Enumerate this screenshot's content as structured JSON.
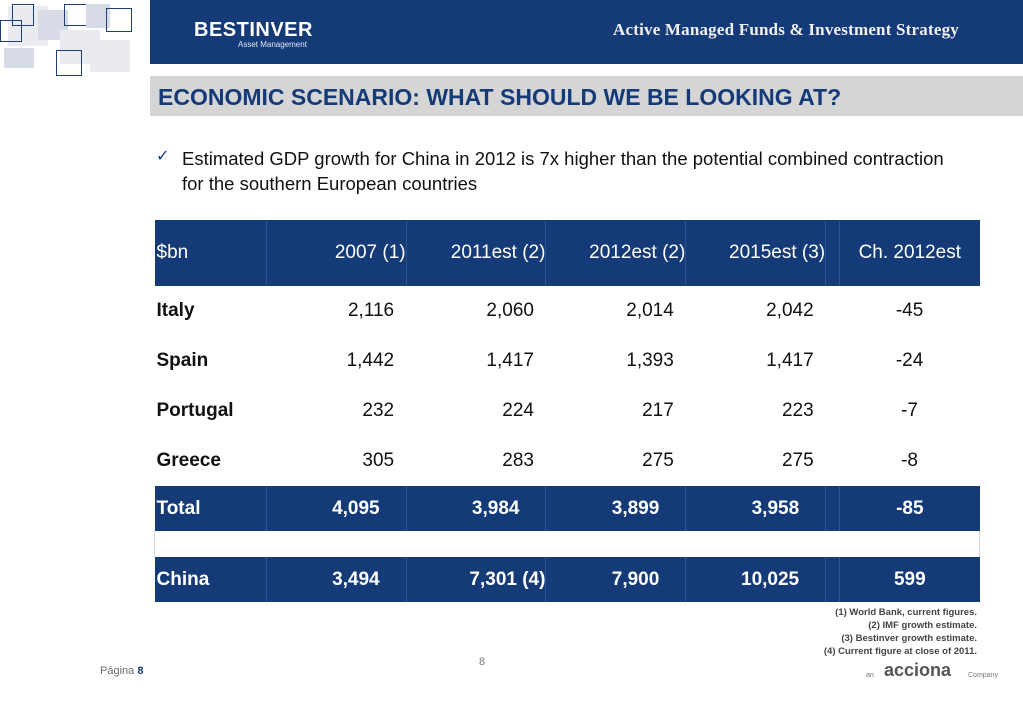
{
  "header": {
    "logo_main": "BESTINVER",
    "logo_sub": "Asset Management",
    "title": "Active Managed Funds & Investment Strategy"
  },
  "slide": {
    "heading": "ECONOMIC SCENARIO: WHAT SHOULD WE BE LOOKING AT?",
    "bullet": "Estimated GDP growth for China in 2012 is 7x higher than the potential combined contraction for the southern European countries"
  },
  "table": {
    "columns": [
      "$bn",
      "2007 (1)",
      "2011est (2)",
      "2012est (2)",
      "2015est (3)",
      "Ch. 2012est"
    ],
    "rows": [
      [
        "Italy",
        "2,116",
        "2,060",
        "2,014",
        "2,042",
        "-45"
      ],
      [
        "Spain",
        "1,442",
        "1,417",
        "1,393",
        "1,417",
        "-24"
      ],
      [
        "Portugal",
        "232",
        "224",
        "217",
        "223",
        "-7"
      ],
      [
        "Greece",
        "305",
        "283",
        "275",
        "275",
        "-8"
      ]
    ],
    "total": [
      "Total",
      "4,095",
      "3,984",
      "3,899",
      "3,958",
      "-85"
    ],
    "china": [
      "China",
      "3,494",
      "7,301 (4)",
      "7,900",
      "10,025",
      "599"
    ]
  },
  "notes": [
    "(1)    World Bank, current figures.",
    "(2)    IMF growth estimate.",
    "(3)    Bestinver growth estimate.",
    "(4)    Current figure at close of 2011."
  ],
  "footer": {
    "page_number": "8",
    "pagina_label": "Página",
    "pagina_number": "8",
    "acciona_an": "an",
    "acciona_name": "acciona",
    "acciona_company": "Company"
  }
}
